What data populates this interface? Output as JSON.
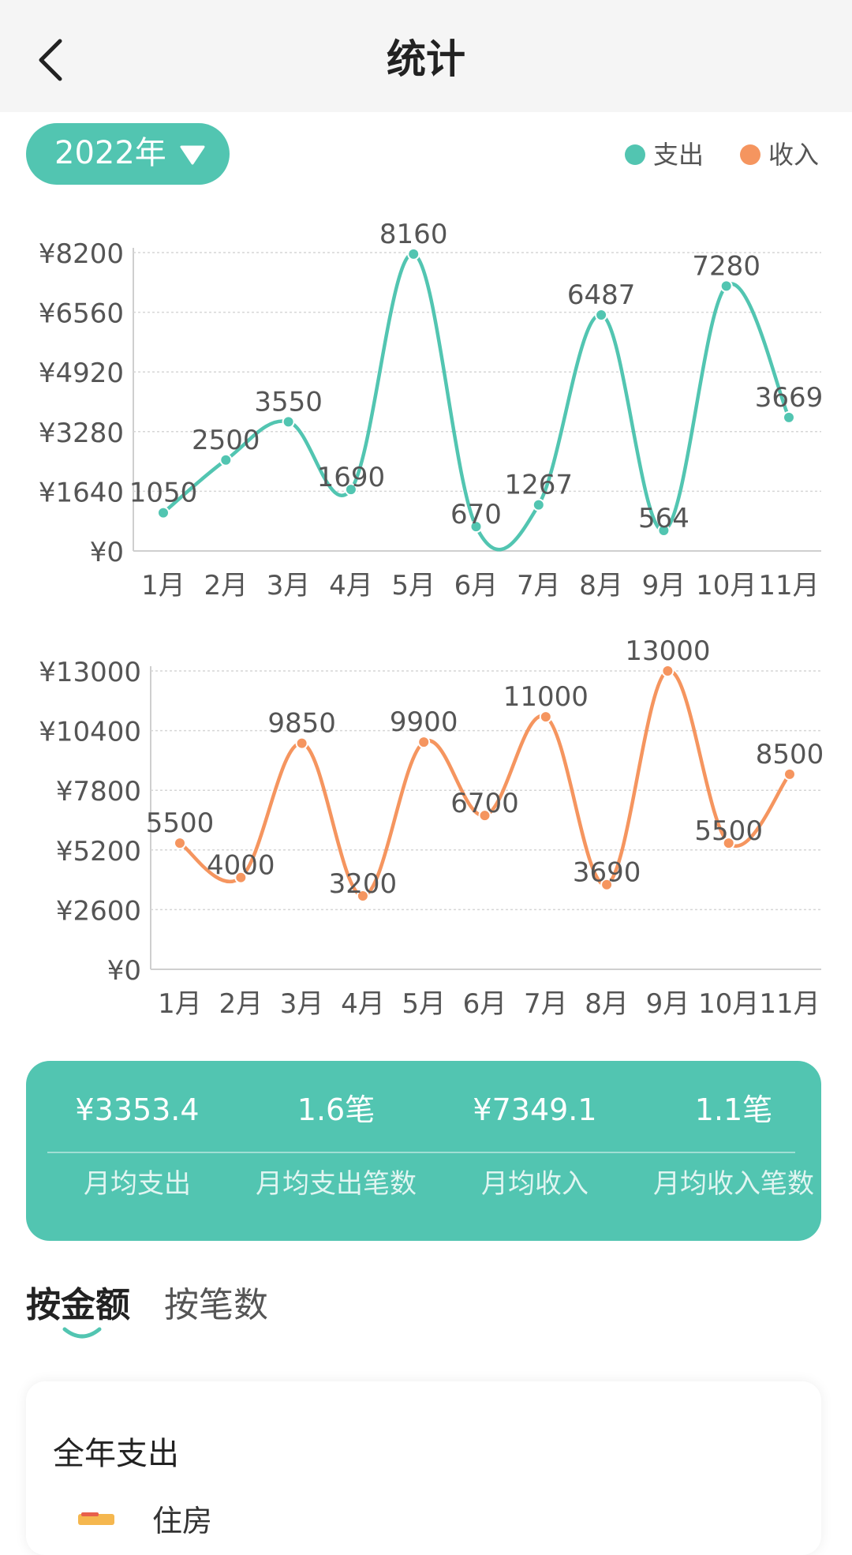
{
  "header": {
    "title": "统计"
  },
  "year_selector": {
    "label": "2022年"
  },
  "legend": [
    {
      "label": "支出",
      "color": "#52c5b1"
    },
    {
      "label": "收入",
      "color": "#f5955f"
    }
  ],
  "expense_chart": {
    "chart_data": {
      "type": "line",
      "categories": [
        "1月",
        "2月",
        "3月",
        "4月",
        "5月",
        "6月",
        "7月",
        "8月",
        "9月",
        "10月",
        "11月"
      ],
      "series": [
        {
          "name": "支出",
          "values": [
            1050,
            2500,
            3550,
            1690,
            8160,
            670,
            1267,
            6487,
            564,
            7280,
            3669
          ]
        }
      ],
      "yticks": [
        "¥0",
        "¥1640",
        "¥3280",
        "¥4920",
        "¥6560",
        "¥8200"
      ],
      "ylim": [
        0,
        8200
      ],
      "color": "#52c5b1",
      "grid": true
    }
  },
  "income_chart": {
    "chart_data": {
      "type": "line",
      "categories": [
        "1月",
        "2月",
        "3月",
        "4月",
        "5月",
        "6月",
        "7月",
        "8月",
        "9月",
        "10月",
        "11月"
      ],
      "series": [
        {
          "name": "收入",
          "values": [
            5500,
            4000,
            9850,
            3200,
            9900,
            6700,
            11000,
            3690,
            13000,
            5500,
            8500
          ]
        }
      ],
      "yticks": [
        "¥0",
        "¥2600",
        "¥5200",
        "¥7800",
        "¥10400",
        "¥13000"
      ],
      "ylim": [
        0,
        13000
      ],
      "color": "#f5955f",
      "grid": true
    }
  },
  "summary": [
    {
      "value": "¥3353.4",
      "label": "月均支出"
    },
    {
      "value": "1.6笔",
      "label": "月均支出笔数"
    },
    {
      "value": "¥7349.1",
      "label": "月均收入"
    },
    {
      "value": "1.1笔",
      "label": "月均收入笔数"
    }
  ],
  "tabs": [
    {
      "label": "按金额",
      "active": true
    },
    {
      "label": "按笔数",
      "active": false
    }
  ],
  "annual": {
    "title": "全年支出",
    "first_category": "住房"
  }
}
